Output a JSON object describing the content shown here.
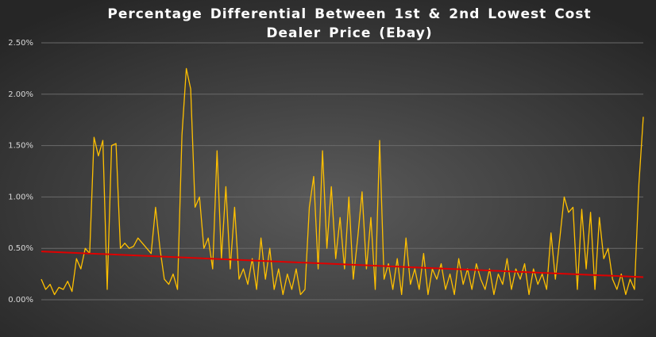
{
  "chart_data": {
    "type": "line",
    "title": "Percentage Differential Between 1st & 2nd Lowest Cost Dealer Price (Ebay)",
    "series": [
      {
        "color": "#ffc000",
        "values": [
          0.2,
          0.1,
          0.15,
          0.05,
          0.12,
          0.1,
          0.18,
          0.08,
          0.4,
          0.3,
          0.5,
          0.45,
          1.58,
          1.4,
          1.55,
          0.1,
          1.5,
          1.52,
          0.5,
          0.55,
          0.5,
          0.52,
          0.6,
          0.55,
          0.5,
          0.45,
          0.9,
          0.5,
          0.2,
          0.15,
          0.25,
          0.1,
          1.6,
          2.25,
          2.05,
          0.9,
          1.0,
          0.5,
          0.6,
          0.3,
          1.45,
          0.4,
          1.1,
          0.3,
          0.9,
          0.2,
          0.3,
          0.15,
          0.4,
          0.1,
          0.6,
          0.2,
          0.5,
          0.1,
          0.3,
          0.05,
          0.25,
          0.1,
          0.3,
          0.05,
          0.1,
          0.9,
          1.2,
          0.3,
          1.45,
          0.5,
          1.1,
          0.4,
          0.8,
          0.3,
          1.0,
          0.2,
          0.6,
          1.05,
          0.3,
          0.8,
          0.1,
          1.55,
          0.2,
          0.35,
          0.1,
          0.4,
          0.05,
          0.6,
          0.15,
          0.3,
          0.1,
          0.45,
          0.05,
          0.3,
          0.2,
          0.35,
          0.1,
          0.25,
          0.05,
          0.4,
          0.15,
          0.3,
          0.1,
          0.35,
          0.2,
          0.1,
          0.3,
          0.05,
          0.25,
          0.15,
          0.4,
          0.1,
          0.3,
          0.2,
          0.35,
          0.05,
          0.3,
          0.15,
          0.25,
          0.1,
          0.65,
          0.2,
          0.6,
          1.0,
          0.85,
          0.9,
          0.1,
          0.88,
          0.3,
          0.85,
          0.1,
          0.8,
          0.4,
          0.5,
          0.2,
          0.1,
          0.25,
          0.05,
          0.2,
          0.1,
          1.13,
          1.78
        ]
      }
    ],
    "trendline": {
      "color": "#e00000",
      "start": 0.47,
      "end": 0.22
    },
    "ylim": [
      0,
      2.5
    ],
    "yticks": [
      {
        "value": 0,
        "label": "0.00%"
      },
      {
        "value": 0.5,
        "label": "0.50%"
      },
      {
        "value": 1,
        "label": "1.00%"
      },
      {
        "value": 1.5,
        "label": "1.50%"
      },
      {
        "value": 2,
        "label": "2.00%"
      },
      {
        "value": 2.5,
        "label": "2.50%"
      }
    ],
    "grid": true
  }
}
